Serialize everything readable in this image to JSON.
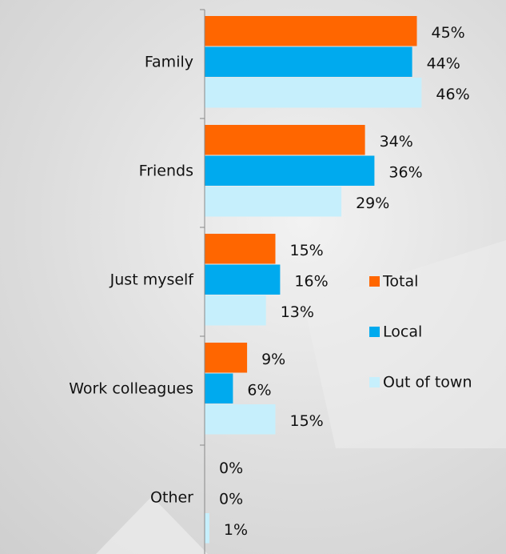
{
  "chart_data": {
    "type": "hbar",
    "categories": [
      "Family",
      "Friends",
      "Just myself",
      "Work colleagues",
      "Other"
    ],
    "series": [
      {
        "name": "Total",
        "color": "#ff6600",
        "values": [
          45,
          34,
          15,
          9,
          0
        ],
        "value_labels": [
          "45%",
          "34%",
          "15%",
          "9%",
          "0%"
        ]
      },
      {
        "name": "Local",
        "color": "#00aaee",
        "values": [
          44,
          36,
          16,
          6,
          0
        ],
        "value_labels": [
          "44%",
          "36%",
          "16%",
          "6%",
          "0%"
        ]
      },
      {
        "name": "Out of town",
        "color": "#c6effc",
        "values": [
          46,
          29,
          13,
          15,
          1
        ],
        "value_labels": [
          "46%",
          "29%",
          "13%",
          "15%",
          "1%"
        ]
      }
    ],
    "xlim": [
      0,
      50
    ]
  }
}
